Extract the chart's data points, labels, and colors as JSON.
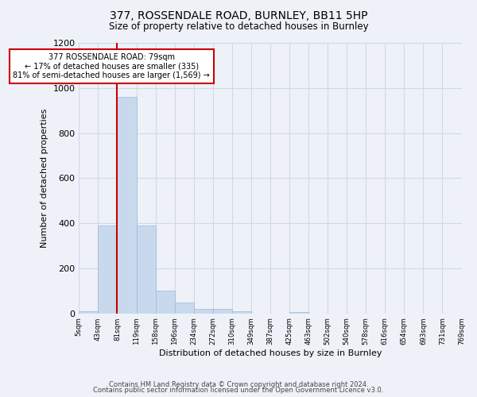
{
  "title_line1": "377, ROSSENDALE ROAD, BURNLEY, BB11 5HP",
  "title_line2": "Size of property relative to detached houses in Burnley",
  "xlabel": "Distribution of detached houses by size in Burnley",
  "ylabel": "Number of detached properties",
  "tick_labels": [
    "5sqm",
    "43sqm",
    "81sqm",
    "119sqm",
    "158sqm",
    "196sqm",
    "234sqm",
    "272sqm",
    "310sqm",
    "349sqm",
    "387sqm",
    "425sqm",
    "463sqm",
    "502sqm",
    "540sqm",
    "578sqm",
    "616sqm",
    "654sqm",
    "693sqm",
    "731sqm",
    "769sqm"
  ],
  "bar_values": [
    10,
    390,
    960,
    390,
    100,
    50,
    20,
    20,
    10,
    0,
    0,
    5,
    0,
    0,
    0,
    0,
    0,
    0,
    0,
    0
  ],
  "bar_color": "#c9d9ed",
  "bar_edge_color": "#a0b8d8",
  "grid_color": "#d0d8e8",
  "subject_bin_index": 2,
  "subject_line_color": "#cc0000",
  "annotation_text": "377 ROSSENDALE ROAD: 79sqm\n← 17% of detached houses are smaller (335)\n81% of semi-detached houses are larger (1,569) →",
  "annotation_box_color": "#ffffff",
  "annotation_box_edge": "#cc0000",
  "ylim": [
    0,
    1200
  ],
  "yticks": [
    0,
    200,
    400,
    600,
    800,
    1000,
    1200
  ],
  "footer_line1": "Contains HM Land Registry data © Crown copyright and database right 2024.",
  "footer_line2": "Contains public sector information licensed under the Open Government Licence v3.0.",
  "bg_color": "#eef2f8"
}
